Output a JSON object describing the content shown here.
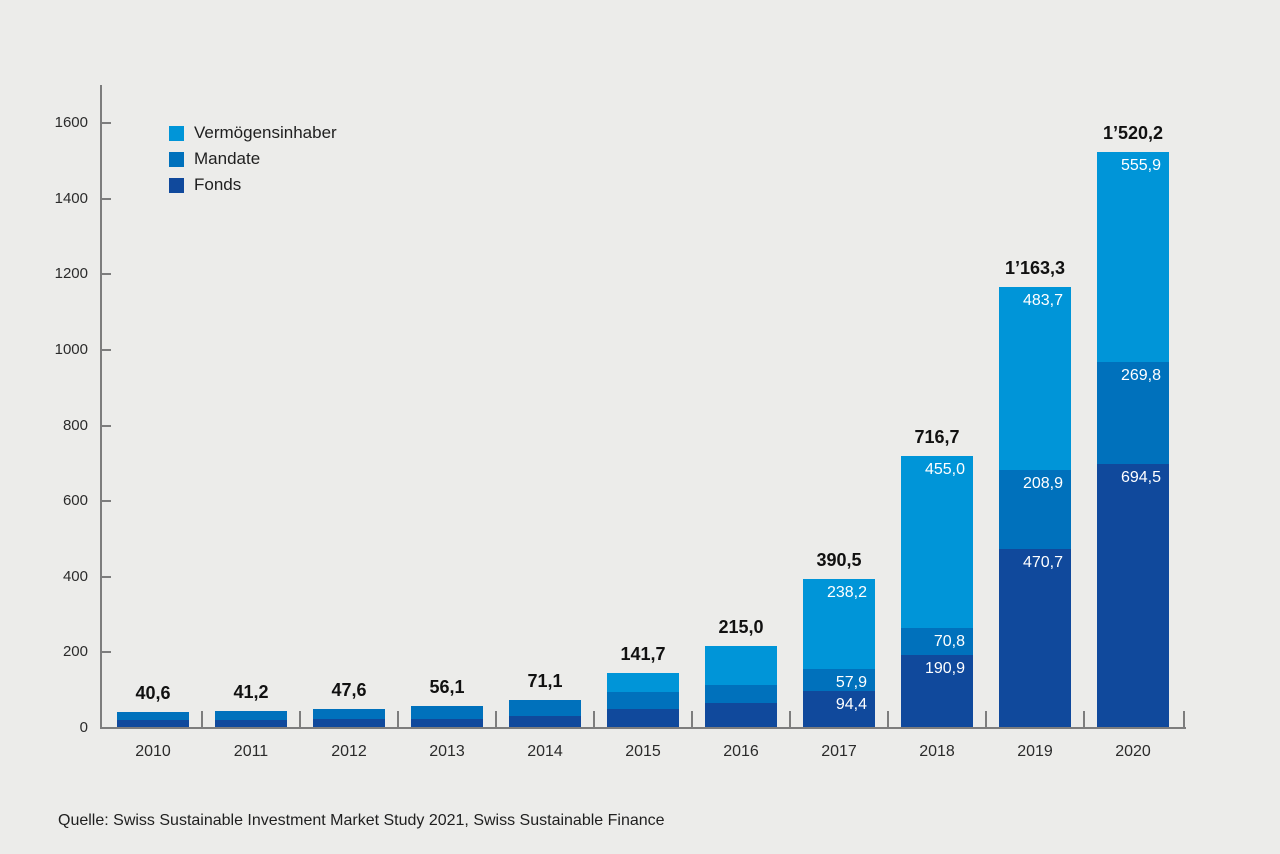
{
  "background_color": "#ececea",
  "accent_colors": {
    "vermoegensinhaber": "#0095d8",
    "mandate": "#0071bc",
    "fonds": "#10499c",
    "axis": "#7d7d7d"
  },
  "legend": {
    "items": [
      {
        "label": "Vermögensinhaber",
        "color": "#0095d8"
      },
      {
        "label": "Mandate",
        "color": "#0071bc"
      },
      {
        "label": "Fonds",
        "color": "#10499c"
      }
    ]
  },
  "source_text": "Quelle: Swiss Sustainable Investment Market Study 2021, Swiss Sustainable Finance",
  "chart_data": {
    "type": "bar",
    "variant": "stacked",
    "title": "",
    "xlabel": "",
    "ylabel": "",
    "grid": false,
    "legend_position": "top-left",
    "ylim": [
      0,
      1600
    ],
    "yticks": [
      0,
      200,
      400,
      600,
      800,
      1000,
      1200,
      1400,
      1600
    ],
    "ytick_labels": [
      "0",
      "200",
      "400",
      "600",
      "800",
      "1000",
      "1200",
      "1400",
      "1600"
    ],
    "categories": [
      "2010",
      "2011",
      "2012",
      "2013",
      "2014",
      "2015",
      "2016",
      "2017",
      "2018",
      "2019",
      "2020"
    ],
    "series": [
      {
        "name": "Fonds",
        "color": "#10499c",
        "values": [
          18.5,
          18.5,
          20.0,
          21.5,
          29.0,
          47.6,
          62.4,
          94.4,
          190.9,
          470.7,
          694.5
        ],
        "segment_labels": [
          null,
          null,
          null,
          null,
          null,
          null,
          null,
          "94,4",
          "190,9",
          "470,7",
          "694,5"
        ]
      },
      {
        "name": "Mandate",
        "color": "#0071bc",
        "values": [
          22.1,
          22.7,
          27.6,
          34.6,
          42.1,
          44.2,
          49.7,
          57.9,
          70.8,
          208.9,
          269.8
        ],
        "segment_labels": [
          null,
          null,
          null,
          null,
          null,
          null,
          null,
          "57,9",
          "70,8",
          "208,9",
          "269,8"
        ]
      },
      {
        "name": "Vermögensinhaber",
        "color": "#0095d8",
        "values": [
          0,
          0,
          0,
          0,
          0,
          49.9,
          102.9,
          238.2,
          455.0,
          483.7,
          555.9
        ],
        "segment_labels": [
          null,
          null,
          null,
          null,
          null,
          null,
          null,
          "238,2",
          "455,0",
          "483,7",
          "555,9"
        ]
      }
    ],
    "totals": [
      40.6,
      41.2,
      47.6,
      56.1,
      71.1,
      141.7,
      215.0,
      390.5,
      716.7,
      1163.3,
      1520.2
    ],
    "total_labels": [
      "40,6",
      "41,2",
      "47,6",
      "56,1",
      "71,1",
      "141,7",
      "215,0",
      "390,5",
      "716,7",
      "1’163,3",
      "1’520,2"
    ]
  }
}
